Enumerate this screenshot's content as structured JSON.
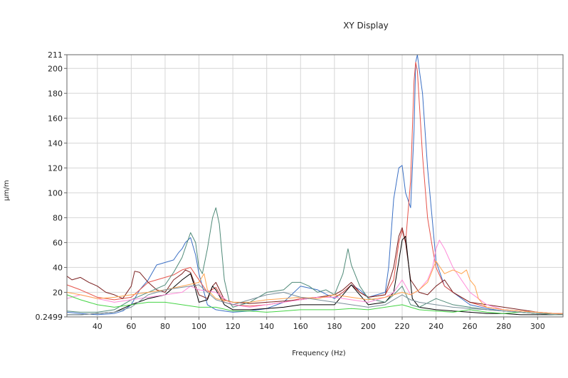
{
  "chart_data": {
    "type": "line",
    "title": "XY Display",
    "xlabel": "Frequency (Hz)",
    "ylabel": "μm/m",
    "xlim": [
      22,
      315
    ],
    "ylim": [
      0.2499,
      211
    ],
    "xticks": [
      40,
      60,
      80,
      100,
      120,
      140,
      160,
      180,
      200,
      220,
      240,
      260,
      280,
      300
    ],
    "yticks": [
      {
        "value": 0.2499,
        "label": "0.2499"
      },
      {
        "value": 20,
        "label": "20"
      },
      {
        "value": 40,
        "label": "40"
      },
      {
        "value": 60,
        "label": "60"
      },
      {
        "value": 80,
        "label": "80"
      },
      {
        "value": 100,
        "label": "100"
      },
      {
        "value": 120,
        "label": "120"
      },
      {
        "value": 140,
        "label": "140"
      },
      {
        "value": 160,
        "label": "160"
      },
      {
        "value": 180,
        "label": "180"
      },
      {
        "value": 200,
        "label": "200"
      },
      {
        "value": 211,
        "label": "211"
      }
    ],
    "grid": true,
    "series": [
      {
        "color": "#3a6fc4",
        "x": [
          22,
          30,
          40,
          50,
          55,
          60,
          65,
          70,
          75,
          80,
          85,
          88,
          90,
          92,
          95,
          98,
          100,
          105,
          110,
          115,
          120,
          130,
          140,
          150,
          160,
          170,
          180,
          185,
          190,
          195,
          200,
          210,
          212,
          215,
          218,
          220,
          222,
          225,
          227,
          228,
          229,
          230,
          232,
          235,
          240,
          245,
          250,
          260,
          270,
          280,
          290,
          300,
          310,
          315
        ],
        "y": [
          4,
          3,
          2,
          3,
          5,
          10,
          22,
          30,
          42,
          44,
          46,
          52,
          55,
          60,
          64,
          50,
          35,
          10,
          6,
          5,
          4,
          5,
          7,
          12,
          25,
          22,
          15,
          20,
          26,
          22,
          16,
          20,
          40,
          95,
          120,
          122,
          100,
          88,
          150,
          205,
          212,
          200,
          180,
          120,
          45,
          25,
          20,
          10,
          7,
          5,
          4,
          3,
          2,
          2
        ]
      },
      {
        "color": "#e6534a",
        "x": [
          22,
          30,
          40,
          50,
          60,
          65,
          70,
          75,
          80,
          85,
          90,
          95,
          100,
          105,
          110,
          115,
          120,
          130,
          140,
          150,
          160,
          170,
          180,
          185,
          190,
          195,
          200,
          210,
          215,
          218,
          220,
          222,
          225,
          226,
          227,
          228,
          229,
          230,
          232,
          235,
          238,
          240,
          245,
          250,
          260,
          270,
          280,
          290,
          300,
          310,
          315
        ],
        "y": [
          26,
          22,
          16,
          14,
          16,
          22,
          28,
          30,
          32,
          34,
          38,
          40,
          30,
          20,
          24,
          12,
          10,
          9,
          10,
          12,
          15,
          16,
          16,
          20,
          26,
          20,
          16,
          18,
          30,
          60,
          70,
          60,
          110,
          150,
          190,
          205,
          198,
          175,
          130,
          80,
          55,
          40,
          25,
          20,
          12,
          8,
          6,
          5,
          4,
          3,
          3
        ]
      },
      {
        "color": "#7a1f1f",
        "x": [
          22,
          25,
          30,
          35,
          40,
          45,
          50,
          55,
          60,
          62,
          65,
          70,
          75,
          80,
          85,
          90,
          92,
          95,
          98,
          100,
          105,
          108,
          110,
          115,
          120,
          130,
          140,
          150,
          160,
          170,
          180,
          185,
          190,
          195,
          200,
          210,
          215,
          218,
          220,
          222,
          225,
          230,
          235,
          240,
          245,
          250,
          260,
          270,
          280,
          290,
          300,
          310,
          315
        ],
        "y": [
          33,
          30,
          32,
          28,
          25,
          20,
          18,
          15,
          25,
          37,
          36,
          28,
          22,
          20,
          30,
          35,
          38,
          36,
          25,
          18,
          15,
          25,
          28,
          14,
          12,
          11,
          12,
          13,
          14,
          16,
          18,
          22,
          28,
          20,
          16,
          18,
          40,
          65,
          72,
          60,
          30,
          20,
          18,
          25,
          30,
          20,
          12,
          10,
          8,
          6,
          4,
          3,
          2
        ]
      },
      {
        "color": "#000000",
        "x": [
          22,
          30,
          40,
          50,
          60,
          70,
          80,
          90,
          95,
          98,
          100,
          105,
          108,
          110,
          115,
          120,
          130,
          140,
          150,
          160,
          170,
          180,
          185,
          190,
          195,
          200,
          210,
          215,
          218,
          220,
          222,
          224,
          226,
          230,
          240,
          250,
          260,
          270,
          280,
          290,
          300,
          310,
          315
        ],
        "y": [
          2,
          2,
          3,
          4,
          10,
          15,
          18,
          30,
          35,
          22,
          12,
          14,
          25,
          22,
          10,
          6,
          6,
          7,
          8,
          10,
          10,
          10,
          18,
          26,
          18,
          10,
          12,
          20,
          45,
          62,
          65,
          40,
          15,
          8,
          6,
          5,
          4,
          3,
          3,
          2,
          2,
          2,
          2
        ]
      },
      {
        "color": "#4f8a78",
        "x": [
          22,
          30,
          40,
          50,
          60,
          70,
          80,
          85,
          90,
          95,
          98,
          100,
          102,
          105,
          108,
          110,
          112,
          115,
          118,
          120,
          130,
          140,
          150,
          155,
          160,
          165,
          170,
          175,
          180,
          185,
          188,
          190,
          195,
          200,
          210,
          215,
          220,
          225,
          230,
          240,
          250,
          260,
          270,
          280,
          290,
          300,
          310,
          315
        ],
        "y": [
          5,
          4,
          4,
          6,
          14,
          20,
          26,
          36,
          48,
          68,
          60,
          40,
          35,
          55,
          80,
          88,
          75,
          30,
          12,
          8,
          12,
          20,
          22,
          28,
          28,
          25,
          20,
          22,
          18,
          35,
          55,
          42,
          25,
          15,
          12,
          18,
          25,
          10,
          8,
          15,
          10,
          8,
          6,
          5,
          4,
          3,
          3,
          3
        ]
      },
      {
        "color": "#ff8ad8",
        "x": [
          22,
          30,
          40,
          50,
          60,
          70,
          80,
          90,
          95,
          100,
          110,
          120,
          130,
          140,
          150,
          160,
          170,
          180,
          190,
          200,
          210,
          215,
          220,
          225,
          230,
          235,
          238,
          240,
          242,
          245,
          250,
          255,
          260,
          265,
          270,
          275,
          280,
          290,
          300,
          310,
          315
        ],
        "y": [
          15,
          18,
          15,
          12,
          14,
          16,
          18,
          20,
          25,
          22,
          20,
          10,
          8,
          10,
          12,
          14,
          16,
          16,
          14,
          12,
          16,
          20,
          30,
          18,
          22,
          30,
          40,
          55,
          62,
          55,
          40,
          30,
          20,
          15,
          10,
          8,
          6,
          5,
          4,
          3,
          3
        ]
      },
      {
        "color": "#ffa34d",
        "x": [
          22,
          30,
          40,
          50,
          60,
          70,
          80,
          90,
          100,
          103,
          105,
          110,
          120,
          130,
          140,
          150,
          160,
          170,
          180,
          190,
          200,
          210,
          220,
          225,
          230,
          235,
          240,
          245,
          250,
          255,
          258,
          260,
          263,
          265,
          268,
          270,
          280,
          290,
          300,
          310,
          315
        ],
        "y": [
          20,
          18,
          15,
          16,
          18,
          20,
          22,
          25,
          28,
          35,
          22,
          15,
          12,
          12,
          14,
          15,
          16,
          15,
          18,
          16,
          14,
          16,
          20,
          18,
          22,
          28,
          45,
          35,
          38,
          35,
          38,
          30,
          25,
          15,
          10,
          8,
          6,
          5,
          4,
          3,
          3
        ]
      },
      {
        "color": "#44d444",
        "x": [
          22,
          30,
          40,
          50,
          60,
          70,
          80,
          90,
          100,
          110,
          120,
          130,
          140,
          150,
          160,
          170,
          180,
          190,
          200,
          210,
          220,
          230,
          240,
          250,
          260,
          270,
          280,
          290,
          300,
          310,
          315
        ],
        "y": [
          18,
          14,
          10,
          8,
          10,
          12,
          12,
          10,
          8,
          8,
          5,
          5,
          4,
          5,
          6,
          6,
          6,
          7,
          6,
          8,
          10,
          6,
          5,
          4,
          6,
          4,
          3,
          4,
          3,
          2,
          2
        ]
      },
      {
        "color": "#7a8f9a",
        "x": [
          22,
          30,
          40,
          50,
          60,
          70,
          80,
          90,
          100,
          110,
          120,
          130,
          140,
          150,
          160,
          170,
          180,
          190,
          200,
          210,
          215,
          220,
          225,
          230,
          240,
          250,
          260,
          270,
          280,
          290,
          300,
          310,
          315
        ],
        "y": [
          2,
          2,
          3,
          4,
          8,
          18,
          22,
          24,
          26,
          14,
          10,
          14,
          18,
          20,
          16,
          14,
          12,
          10,
          8,
          10,
          14,
          18,
          14,
          12,
          10,
          8,
          7,
          6,
          5,
          4,
          3,
          2,
          2
        ]
      }
    ]
  }
}
